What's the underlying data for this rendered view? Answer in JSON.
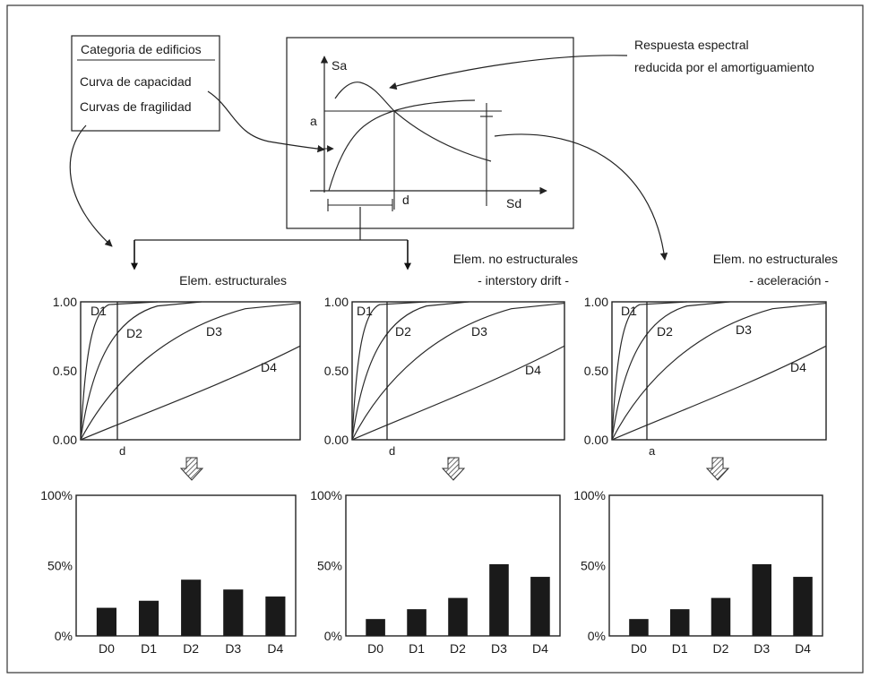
{
  "category_box": {
    "title": "Categoria de edificios",
    "item1": "Curva de capacidad",
    "item2": "Curvas de fragilidad"
  },
  "spectrum_plot": {
    "y_label": "Sa",
    "x_label": "Sd",
    "a_label": "a",
    "d_label": "d"
  },
  "spectral_note": {
    "line1": "Respuesta espectral",
    "line2": "reducida por el amortiguamiento"
  },
  "fragility_panels": [
    {
      "heading_line1": "Elem. estructurales",
      "heading_line2": "",
      "y_ticks": [
        "1.00",
        "0.50",
        "0.00"
      ],
      "marker_label": "d",
      "curves": [
        "D1",
        "D2",
        "D3",
        "D4"
      ]
    },
    {
      "heading_line1": "Elem. no estructurales",
      "heading_line2": "- interstory drift -",
      "y_ticks": [
        "1.00",
        "0.50",
        "0.00"
      ],
      "marker_label": "d",
      "curves": [
        "D1",
        "D2",
        "D3",
        "D4"
      ]
    },
    {
      "heading_line1": "Elem. no estructurales",
      "heading_line2": "- aceleración -",
      "y_ticks": [
        "1.00",
        "0.50",
        "0.00"
      ],
      "marker_label": "a",
      "curves": [
        "D1",
        "D2",
        "D3",
        "D4"
      ]
    }
  ],
  "chart_data": [
    {
      "type": "bar",
      "categories": [
        "D0",
        "D1",
        "D2",
        "D3",
        "D4"
      ],
      "values": [
        20,
        25,
        40,
        33,
        28
      ],
      "y_ticks": [
        "100%",
        "50%",
        "0%"
      ],
      "ylim": [
        0,
        100
      ],
      "bar_color": "#1a1a1a"
    },
    {
      "type": "bar",
      "categories": [
        "D0",
        "D1",
        "D2",
        "D3",
        "D4"
      ],
      "values": [
        12,
        19,
        27,
        51,
        42
      ],
      "y_ticks": [
        "100%",
        "50%",
        "0%"
      ],
      "ylim": [
        0,
        100
      ],
      "bar_color": "#1a1a1a"
    },
    {
      "type": "bar",
      "categories": [
        "D0",
        "D1",
        "D2",
        "D3",
        "D4"
      ],
      "values": [
        12,
        19,
        27,
        51,
        42
      ],
      "y_ticks": [
        "100%",
        "50%",
        "0%"
      ],
      "ylim": [
        0,
        100
      ],
      "bar_color": "#1a1a1a"
    }
  ]
}
